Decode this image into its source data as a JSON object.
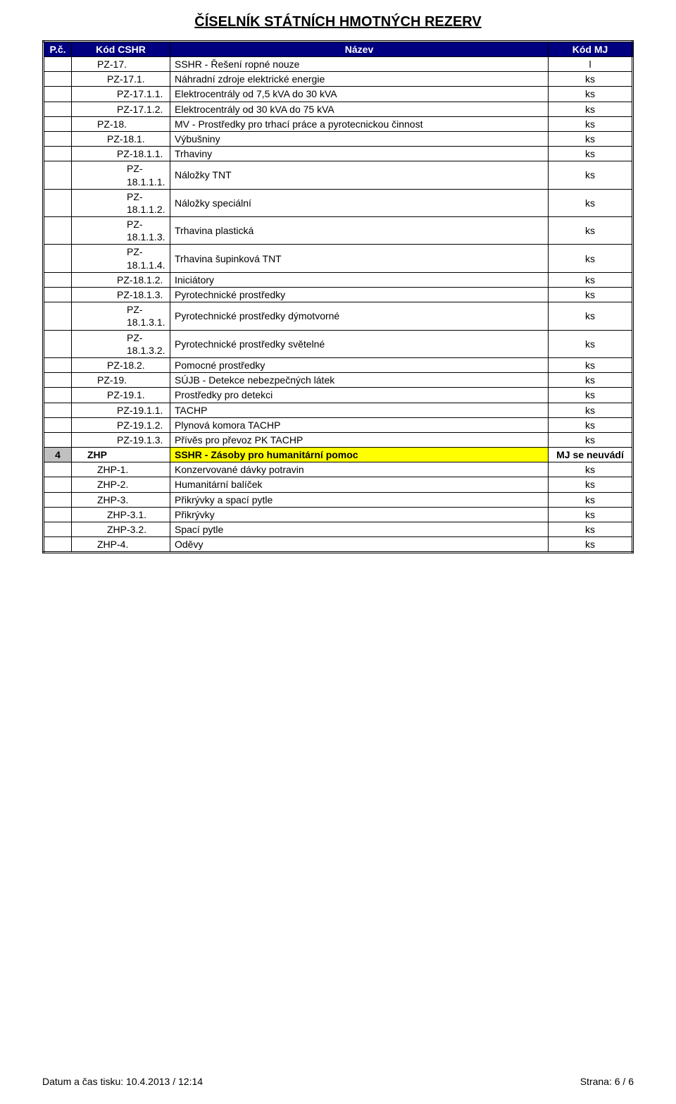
{
  "title": "ČÍSELNÍK STÁTNÍCH HMOTNÝCH REZERV",
  "columns": {
    "pc": "P.č.",
    "code": "Kód CSHR",
    "name": "Název",
    "mj": "Kód MJ"
  },
  "rows": [
    {
      "pc": "",
      "code": "PZ-17.",
      "name": "SSHR - Řešení ropné nouze",
      "mj": "l",
      "indent": 2,
      "section": false
    },
    {
      "pc": "",
      "code": "PZ-17.1.",
      "name": "Náhradní zdroje elektrické energie",
      "mj": "ks",
      "indent": 3,
      "section": false
    },
    {
      "pc": "",
      "code": "PZ-17.1.1.",
      "name": "Elektrocentrály od 7,5 kVA do 30 kVA",
      "mj": "ks",
      "indent": 4,
      "section": false
    },
    {
      "pc": "",
      "code": "PZ-17.1.2.",
      "name": "Elektrocentrály od 30 kVA do 75 kVA",
      "mj": "ks",
      "indent": 4,
      "section": false
    },
    {
      "pc": "",
      "code": "PZ-18.",
      "name": "MV - Prostředky pro trhací práce a pyrotecnickou činnost",
      "mj": "ks",
      "indent": 2,
      "section": false
    },
    {
      "pc": "",
      "code": "PZ-18.1.",
      "name": "Výbušniny",
      "mj": "ks",
      "indent": 3,
      "section": false
    },
    {
      "pc": "",
      "code": "PZ-18.1.1.",
      "name": "Trhaviny",
      "mj": "ks",
      "indent": 4,
      "section": false
    },
    {
      "pc": "",
      "code": "PZ-18.1.1.1.",
      "name": "Náložky TNT",
      "mj": "ks",
      "indent": 5,
      "section": false
    },
    {
      "pc": "",
      "code": "PZ-18.1.1.2.",
      "name": "Náložky speciální",
      "mj": "ks",
      "indent": 5,
      "section": false
    },
    {
      "pc": "",
      "code": "PZ-18.1.1.3.",
      "name": "Trhavina plastická",
      "mj": "ks",
      "indent": 5,
      "section": false
    },
    {
      "pc": "",
      "code": "PZ-18.1.1.4.",
      "name": "Trhavina šupinková TNT",
      "mj": "ks",
      "indent": 5,
      "section": false
    },
    {
      "pc": "",
      "code": "PZ-18.1.2.",
      "name": "Iniciátory",
      "mj": "ks",
      "indent": 4,
      "section": false
    },
    {
      "pc": "",
      "code": "PZ-18.1.3.",
      "name": "Pyrotechnické prostředky",
      "mj": "ks",
      "indent": 4,
      "section": false
    },
    {
      "pc": "",
      "code": "PZ-18.1.3.1.",
      "name": "Pyrotechnické prostředky dýmotvorné",
      "mj": "ks",
      "indent": 5,
      "section": false
    },
    {
      "pc": "",
      "code": "PZ-18.1.3.2.",
      "name": "Pyrotechnické prostředky světelné",
      "mj": "ks",
      "indent": 5,
      "section": false
    },
    {
      "pc": "",
      "code": "PZ-18.2.",
      "name": "Pomocné prostředky",
      "mj": "ks",
      "indent": 3,
      "section": false
    },
    {
      "pc": "",
      "code": "PZ-19.",
      "name": "SÚJB - Detekce nebezpečných látek",
      "mj": "ks",
      "indent": 2,
      "section": false
    },
    {
      "pc": "",
      "code": "PZ-19.1.",
      "name": "Prostředky pro detekci",
      "mj": "ks",
      "indent": 3,
      "section": false
    },
    {
      "pc": "",
      "code": "PZ-19.1.1.",
      "name": "TACHP",
      "mj": "ks",
      "indent": 4,
      "section": false
    },
    {
      "pc": "",
      "code": "PZ-19.1.2.",
      "name": "Plynová komora TACHP",
      "mj": "ks",
      "indent": 4,
      "section": false
    },
    {
      "pc": "",
      "code": "PZ-19.1.3.",
      "name": "Přívěs pro převoz PK TACHP",
      "mj": "ks",
      "indent": 4,
      "section": false
    },
    {
      "pc": "4",
      "code": "ZHP",
      "name": "SSHR - Zásoby pro humanitární pomoc",
      "mj": "MJ se neuvádí",
      "indent": 1,
      "section": true
    },
    {
      "pc": "",
      "code": "ZHP-1.",
      "name": "Konzervované dávky potravin",
      "mj": "ks",
      "indent": 2,
      "section": false
    },
    {
      "pc": "",
      "code": "ZHP-2.",
      "name": "Humanitární balíček",
      "mj": "ks",
      "indent": 2,
      "section": false
    },
    {
      "pc": "",
      "code": "ZHP-3.",
      "name": "Přikrývky a spací pytle",
      "mj": "ks",
      "indent": 2,
      "section": false
    },
    {
      "pc": "",
      "code": "ZHP-3.1.",
      "name": "Přikrývky",
      "mj": "ks",
      "indent": 3,
      "section": false
    },
    {
      "pc": "",
      "code": "ZHP-3.2.",
      "name": "Spací pytle",
      "mj": "ks",
      "indent": 3,
      "section": false
    },
    {
      "pc": "",
      "code": "ZHP-4.",
      "name": "Oděvy",
      "mj": "ks",
      "indent": 2,
      "section": false
    }
  ],
  "footer": {
    "left": "Datum a čas tisku:  10.4.2013 / 12:14",
    "right": "Strana: 6 / 6"
  },
  "colors": {
    "header_bg": "#000080",
    "header_fg": "#ffffff",
    "section_pc_bg": "#c0c0c0",
    "section_name_bg": "#ffff00",
    "border": "#000000"
  }
}
